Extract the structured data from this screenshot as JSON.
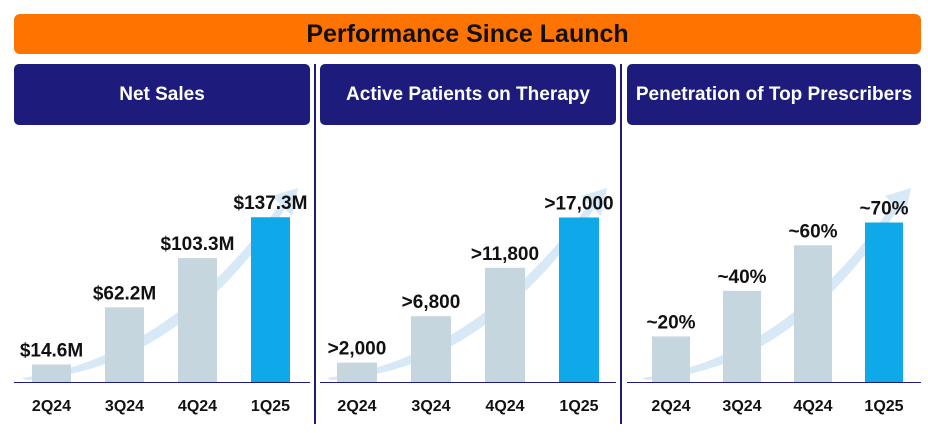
{
  "banner": {
    "title": "Performance Since Launch"
  },
  "colors": {
    "banner": "#ff7300",
    "header": "#1d1c7c",
    "bar": "#c6d6df",
    "bar_highlight": "#0fa9e9",
    "arrow": "#d7e9f7"
  },
  "chart_data": [
    {
      "type": "bar",
      "title": "Net Sales",
      "categories": [
        "2Q24",
        "3Q24",
        "4Q24",
        "1Q25"
      ],
      "values": [
        14.6,
        62.2,
        103.3,
        137.3
      ],
      "data_labels": [
        "$14.6M",
        "$62.2M",
        "$103.3M",
        "$137.3M"
      ],
      "highlight_index": 3,
      "ylim": [
        0,
        150
      ]
    },
    {
      "type": "bar",
      "title": "Active Patients on Therapy",
      "categories": [
        "2Q24",
        "3Q24",
        "4Q24",
        "1Q25"
      ],
      "values": [
        2000,
        6800,
        11800,
        17000
      ],
      "data_labels": [
        ">2,000",
        ">6,800",
        ">11,800",
        ">17,000"
      ],
      "highlight_index": 3,
      "ylim": [
        0,
        18600
      ]
    },
    {
      "type": "bar",
      "title": "Penetration of Top Prescribers",
      "categories": [
        "2Q24",
        "3Q24",
        "4Q24",
        "1Q25"
      ],
      "values": [
        20,
        40,
        60,
        70
      ],
      "data_labels": [
        "~20%",
        "~40%",
        "~60%",
        "~70%"
      ],
      "highlight_index": 3,
      "ylim": [
        0,
        79
      ]
    }
  ]
}
